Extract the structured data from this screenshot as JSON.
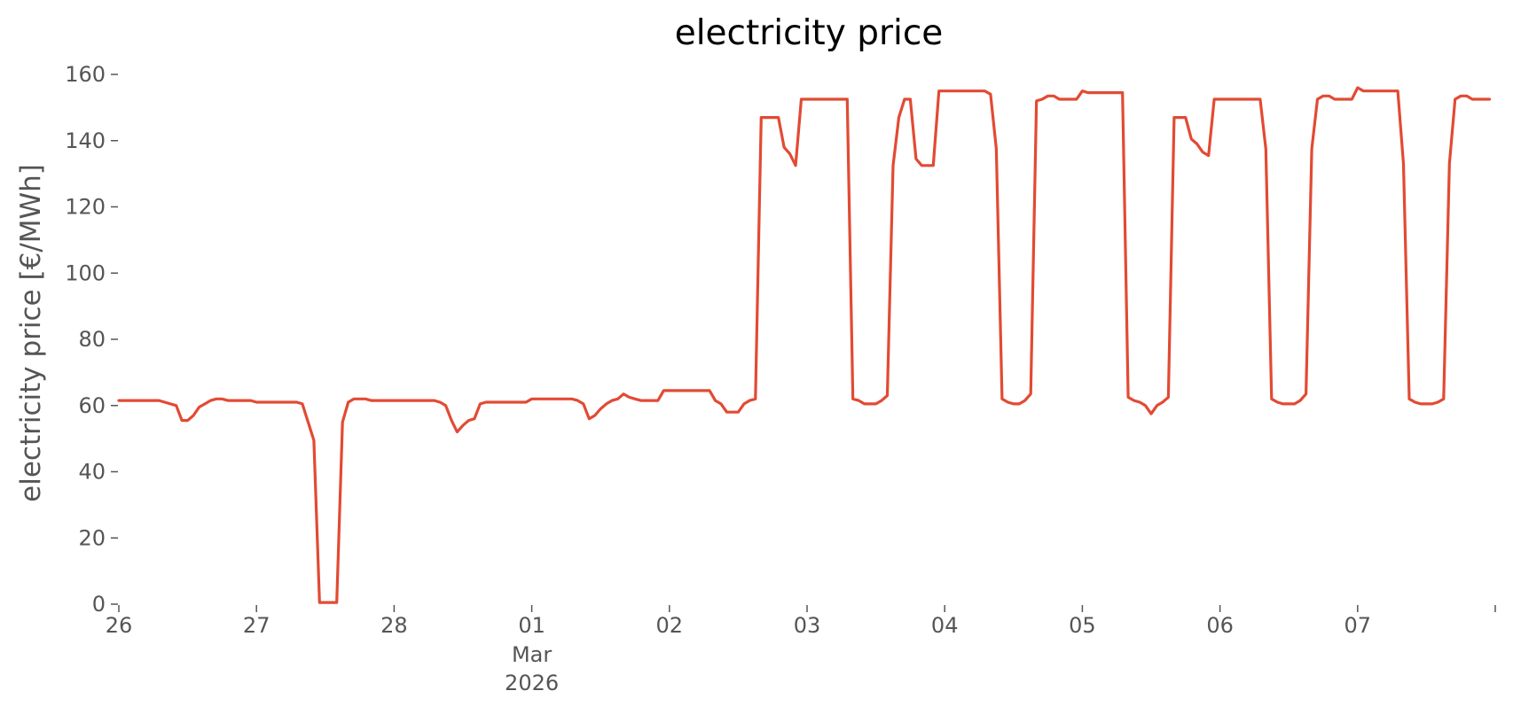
{
  "chart_data": {
    "type": "line",
    "title": "electricity price",
    "xlabel": "",
    "ylabel": "electricity price [€/MWh]",
    "ylim": [
      0,
      160
    ],
    "xlim": [
      "2026-02-26",
      "2026-03-08"
    ],
    "grid": false,
    "y_ticks": [
      0,
      20,
      40,
      60,
      80,
      100,
      120,
      140,
      160
    ],
    "x_ticks": [
      {
        "date": "2026-02-26",
        "label": "26"
      },
      {
        "date": "2026-02-27",
        "label": "27"
      },
      {
        "date": "2026-02-28",
        "label": "28"
      },
      {
        "date": "2026-03-01",
        "label": "01",
        "sublabel": "Mar",
        "sublabel2": "2026"
      },
      {
        "date": "2026-03-02",
        "label": "02"
      },
      {
        "date": "2026-03-03",
        "label": "03"
      },
      {
        "date": "2026-03-04",
        "label": "04"
      },
      {
        "date": "2026-03-05",
        "label": "05"
      },
      {
        "date": "2026-03-06",
        "label": "06"
      },
      {
        "date": "2026-03-07",
        "label": "07"
      },
      {
        "date": "2026-03-08",
        "label": ""
      }
    ],
    "series": [
      {
        "color": "#E24A33",
        "points": [
          [
            "2026-02-26T00:00",
            61.5
          ],
          [
            "2026-02-26T04:00",
            61.5
          ],
          [
            "2026-02-26T07:00",
            61.5
          ],
          [
            "2026-02-26T08:00",
            61.0
          ],
          [
            "2026-02-26T10:00",
            60.0
          ],
          [
            "2026-02-26T11:00",
            55.5
          ],
          [
            "2026-02-26T12:00",
            55.5
          ],
          [
            "2026-02-26T13:00",
            57.0
          ],
          [
            "2026-02-26T14:00",
            59.5
          ],
          [
            "2026-02-26T16:00",
            61.5
          ],
          [
            "2026-02-26T17:00",
            62.0
          ],
          [
            "2026-02-26T18:00",
            62.0
          ],
          [
            "2026-02-26T19:00",
            61.5
          ],
          [
            "2026-02-26T23:00",
            61.5
          ],
          [
            "2026-02-27T00:00",
            61.0
          ],
          [
            "2026-02-27T07:00",
            61.0
          ],
          [
            "2026-02-27T08:00",
            60.5
          ],
          [
            "2026-02-27T10:00",
            49.5
          ],
          [
            "2026-02-27T11:00",
            0.5
          ],
          [
            "2026-02-27T12:00",
            0.5
          ],
          [
            "2026-02-27T14:00",
            0.5
          ],
          [
            "2026-02-27T15:00",
            55.0
          ],
          [
            "2026-02-27T16:00",
            61.0
          ],
          [
            "2026-02-27T17:00",
            62.0
          ],
          [
            "2026-02-27T19:00",
            62.0
          ],
          [
            "2026-02-27T20:00",
            61.5
          ],
          [
            "2026-02-27T23:00",
            61.5
          ],
          [
            "2026-02-28T00:00",
            61.5
          ],
          [
            "2026-02-28T07:00",
            61.5
          ],
          [
            "2026-02-28T08:00",
            61.0
          ],
          [
            "2026-02-28T09:00",
            60.0
          ],
          [
            "2026-02-28T10:00",
            55.5
          ],
          [
            "2026-02-28T11:00",
            52.0
          ],
          [
            "2026-02-28T12:00",
            54.0
          ],
          [
            "2026-02-28T13:00",
            55.5
          ],
          [
            "2026-02-28T14:00",
            56.0
          ],
          [
            "2026-02-28T15:00",
            60.5
          ],
          [
            "2026-02-28T16:00",
            61.0
          ],
          [
            "2026-02-28T23:00",
            61.0
          ],
          [
            "2026-03-01T00:00",
            62.0
          ],
          [
            "2026-03-01T07:00",
            62.0
          ],
          [
            "2026-03-01T08:00",
            61.5
          ],
          [
            "2026-03-01T09:00",
            60.5
          ],
          [
            "2026-03-01T10:00",
            56.0
          ],
          [
            "2026-03-01T11:00",
            57.0
          ],
          [
            "2026-03-01T12:00",
            59.0
          ],
          [
            "2026-03-01T13:00",
            60.5
          ],
          [
            "2026-03-01T14:00",
            61.5
          ],
          [
            "2026-03-01T15:00",
            62.0
          ],
          [
            "2026-03-01T16:00",
            63.5
          ],
          [
            "2026-03-01T17:00",
            62.5
          ],
          [
            "2026-03-01T18:00",
            62.0
          ],
          [
            "2026-03-01T19:00",
            61.5
          ],
          [
            "2026-03-01T22:00",
            61.5
          ],
          [
            "2026-03-01T23:00",
            64.5
          ],
          [
            "2026-03-02T00:00",
            64.5
          ],
          [
            "2026-03-02T07:00",
            64.5
          ],
          [
            "2026-03-02T08:00",
            61.5
          ],
          [
            "2026-03-02T09:00",
            60.5
          ],
          [
            "2026-03-02T10:00",
            58.0
          ],
          [
            "2026-03-02T12:00",
            58.0
          ],
          [
            "2026-03-02T13:00",
            60.5
          ],
          [
            "2026-03-02T14:00",
            61.5
          ],
          [
            "2026-03-02T15:00",
            62.0
          ],
          [
            "2026-03-02T16:00",
            147.0
          ],
          [
            "2026-03-02T17:00",
            147.0
          ],
          [
            "2026-03-02T19:00",
            147.0
          ],
          [
            "2026-03-02T20:00",
            138.0
          ],
          [
            "2026-03-02T21:00",
            136.0
          ],
          [
            "2026-03-02T22:00",
            132.5
          ],
          [
            "2026-03-02T23:00",
            152.5
          ],
          [
            "2026-03-03T00:00",
            152.5
          ],
          [
            "2026-03-03T07:00",
            152.5
          ],
          [
            "2026-03-03T08:00",
            62.0
          ],
          [
            "2026-03-03T09:00",
            61.5
          ],
          [
            "2026-03-03T10:00",
            60.5
          ],
          [
            "2026-03-03T12:00",
            60.5
          ],
          [
            "2026-03-03T13:00",
            61.5
          ],
          [
            "2026-03-03T14:00",
            63.0
          ],
          [
            "2026-03-03T15:00",
            132.5
          ],
          [
            "2026-03-03T16:00",
            147.0
          ],
          [
            "2026-03-03T17:00",
            152.5
          ],
          [
            "2026-03-03T18:00",
            152.5
          ],
          [
            "2026-03-03T19:00",
            134.5
          ],
          [
            "2026-03-03T20:00",
            132.5
          ],
          [
            "2026-03-03T22:00",
            132.5
          ],
          [
            "2026-03-03T23:00",
            155.0
          ],
          [
            "2026-03-04T00:00",
            155.0
          ],
          [
            "2026-03-04T07:00",
            155.0
          ],
          [
            "2026-03-04T08:00",
            154.0
          ],
          [
            "2026-03-04T09:00",
            137.5
          ],
          [
            "2026-03-04T10:00",
            62.0
          ],
          [
            "2026-03-04T11:00",
            61.0
          ],
          [
            "2026-03-04T12:00",
            60.5
          ],
          [
            "2026-03-04T13:00",
            60.5
          ],
          [
            "2026-03-04T14:00",
            61.5
          ],
          [
            "2026-03-04T15:00",
            63.5
          ],
          [
            "2026-03-04T16:00",
            152.0
          ],
          [
            "2026-03-04T17:00",
            152.5
          ],
          [
            "2026-03-04T18:00",
            153.5
          ],
          [
            "2026-03-04T19:00",
            153.5
          ],
          [
            "2026-03-04T20:00",
            152.5
          ],
          [
            "2026-03-04T22:00",
            152.5
          ],
          [
            "2026-03-04T23:00",
            152.5
          ],
          [
            "2026-03-05T00:00",
            155.0
          ],
          [
            "2026-03-05T01:00",
            154.5
          ],
          [
            "2026-03-05T07:00",
            154.5
          ],
          [
            "2026-03-05T08:00",
            62.5
          ],
          [
            "2026-03-05T09:00",
            61.5
          ],
          [
            "2026-03-05T10:00",
            61.0
          ],
          [
            "2026-03-05T11:00",
            60.0
          ],
          [
            "2026-03-05T12:00",
            57.5
          ],
          [
            "2026-03-05T13:00",
            60.0
          ],
          [
            "2026-03-05T14:00",
            61.0
          ],
          [
            "2026-03-05T15:00",
            62.5
          ],
          [
            "2026-03-05T16:00",
            147.0
          ],
          [
            "2026-03-05T17:00",
            147.0
          ],
          [
            "2026-03-05T18:00",
            147.0
          ],
          [
            "2026-03-05T19:00",
            140.5
          ],
          [
            "2026-03-05T20:00",
            139.0
          ],
          [
            "2026-03-05T21:00",
            136.5
          ],
          [
            "2026-03-05T22:00",
            135.5
          ],
          [
            "2026-03-05T23:00",
            152.5
          ],
          [
            "2026-03-06T00:00",
            152.5
          ],
          [
            "2026-03-06T07:00",
            152.5
          ],
          [
            "2026-03-06T08:00",
            137.5
          ],
          [
            "2026-03-06T09:00",
            62.0
          ],
          [
            "2026-03-06T10:00",
            61.0
          ],
          [
            "2026-03-06T11:00",
            60.5
          ],
          [
            "2026-03-06T13:00",
            60.5
          ],
          [
            "2026-03-06T14:00",
            61.5
          ],
          [
            "2026-03-06T15:00",
            63.5
          ],
          [
            "2026-03-06T16:00",
            137.5
          ],
          [
            "2026-03-06T17:00",
            152.5
          ],
          [
            "2026-03-06T18:00",
            153.5
          ],
          [
            "2026-03-06T19:00",
            153.5
          ],
          [
            "2026-03-06T20:00",
            152.5
          ],
          [
            "2026-03-06T23:00",
            152.5
          ],
          [
            "2026-03-07T00:00",
            156.0
          ],
          [
            "2026-03-07T01:00",
            155.0
          ],
          [
            "2026-03-07T07:00",
            155.0
          ],
          [
            "2026-03-07T08:00",
            133.0
          ],
          [
            "2026-03-07T09:00",
            62.0
          ],
          [
            "2026-03-07T10:00",
            61.0
          ],
          [
            "2026-03-07T11:00",
            60.5
          ],
          [
            "2026-03-07T13:00",
            60.5
          ],
          [
            "2026-03-07T14:00",
            61.0
          ],
          [
            "2026-03-07T15:00",
            62.0
          ],
          [
            "2026-03-07T16:00",
            133.0
          ],
          [
            "2026-03-07T17:00",
            152.5
          ],
          [
            "2026-03-07T18:00",
            153.5
          ],
          [
            "2026-03-07T19:00",
            153.5
          ],
          [
            "2026-03-07T20:00",
            152.5
          ],
          [
            "2026-03-07T23:00",
            152.5
          ]
        ]
      }
    ]
  }
}
